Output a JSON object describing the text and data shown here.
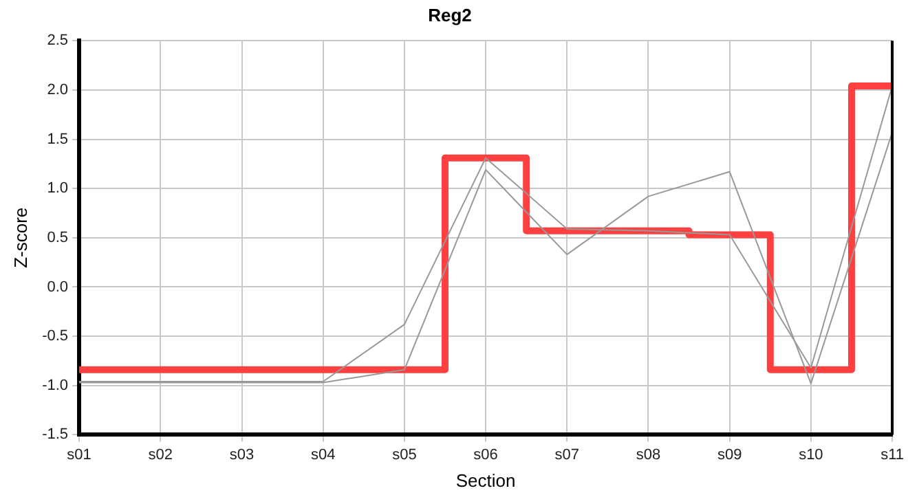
{
  "chart_data": {
    "type": "line",
    "title": "Reg2",
    "xlabel": "Section",
    "ylabel": "Z-score",
    "categories": [
      "s01",
      "s02",
      "s03",
      "s04",
      "s05",
      "s06",
      "s07",
      "s08",
      "s09",
      "s10",
      "s11"
    ],
    "series": [
      {
        "color": "#999999",
        "values": [
          -0.96,
          -0.96,
          -0.96,
          -0.96,
          -0.38,
          1.31,
          0.59,
          0.57,
          0.53,
          -0.82,
          2.04
        ]
      },
      {
        "color": "#999999",
        "values": [
          -0.97,
          -0.97,
          -0.97,
          -0.97,
          -0.84,
          1.19,
          0.33,
          0.92,
          1.17,
          -0.98,
          1.57
        ]
      },
      {
        "type": "step",
        "color": "#ff4040",
        "values": [
          -0.84,
          -0.84,
          -0.84,
          -0.84,
          -0.84,
          1.31,
          0.57,
          0.57,
          0.53,
          -0.84,
          2.04
        ]
      }
    ],
    "ylim": [
      -1.5,
      2.5
    ],
    "yticks": [
      -1.5,
      {
        "value": -1,
        "label": "-1.0"
      },
      -0.5,
      {
        "value": 0,
        "label": "0.0"
      },
      0.5,
      {
        "value": 1,
        "label": "1.0"
      },
      1.5,
      {
        "value": 2,
        "label": "2.0"
      },
      2.5
    ],
    "grid": true,
    "legend": false,
    "marker": "none"
  }
}
